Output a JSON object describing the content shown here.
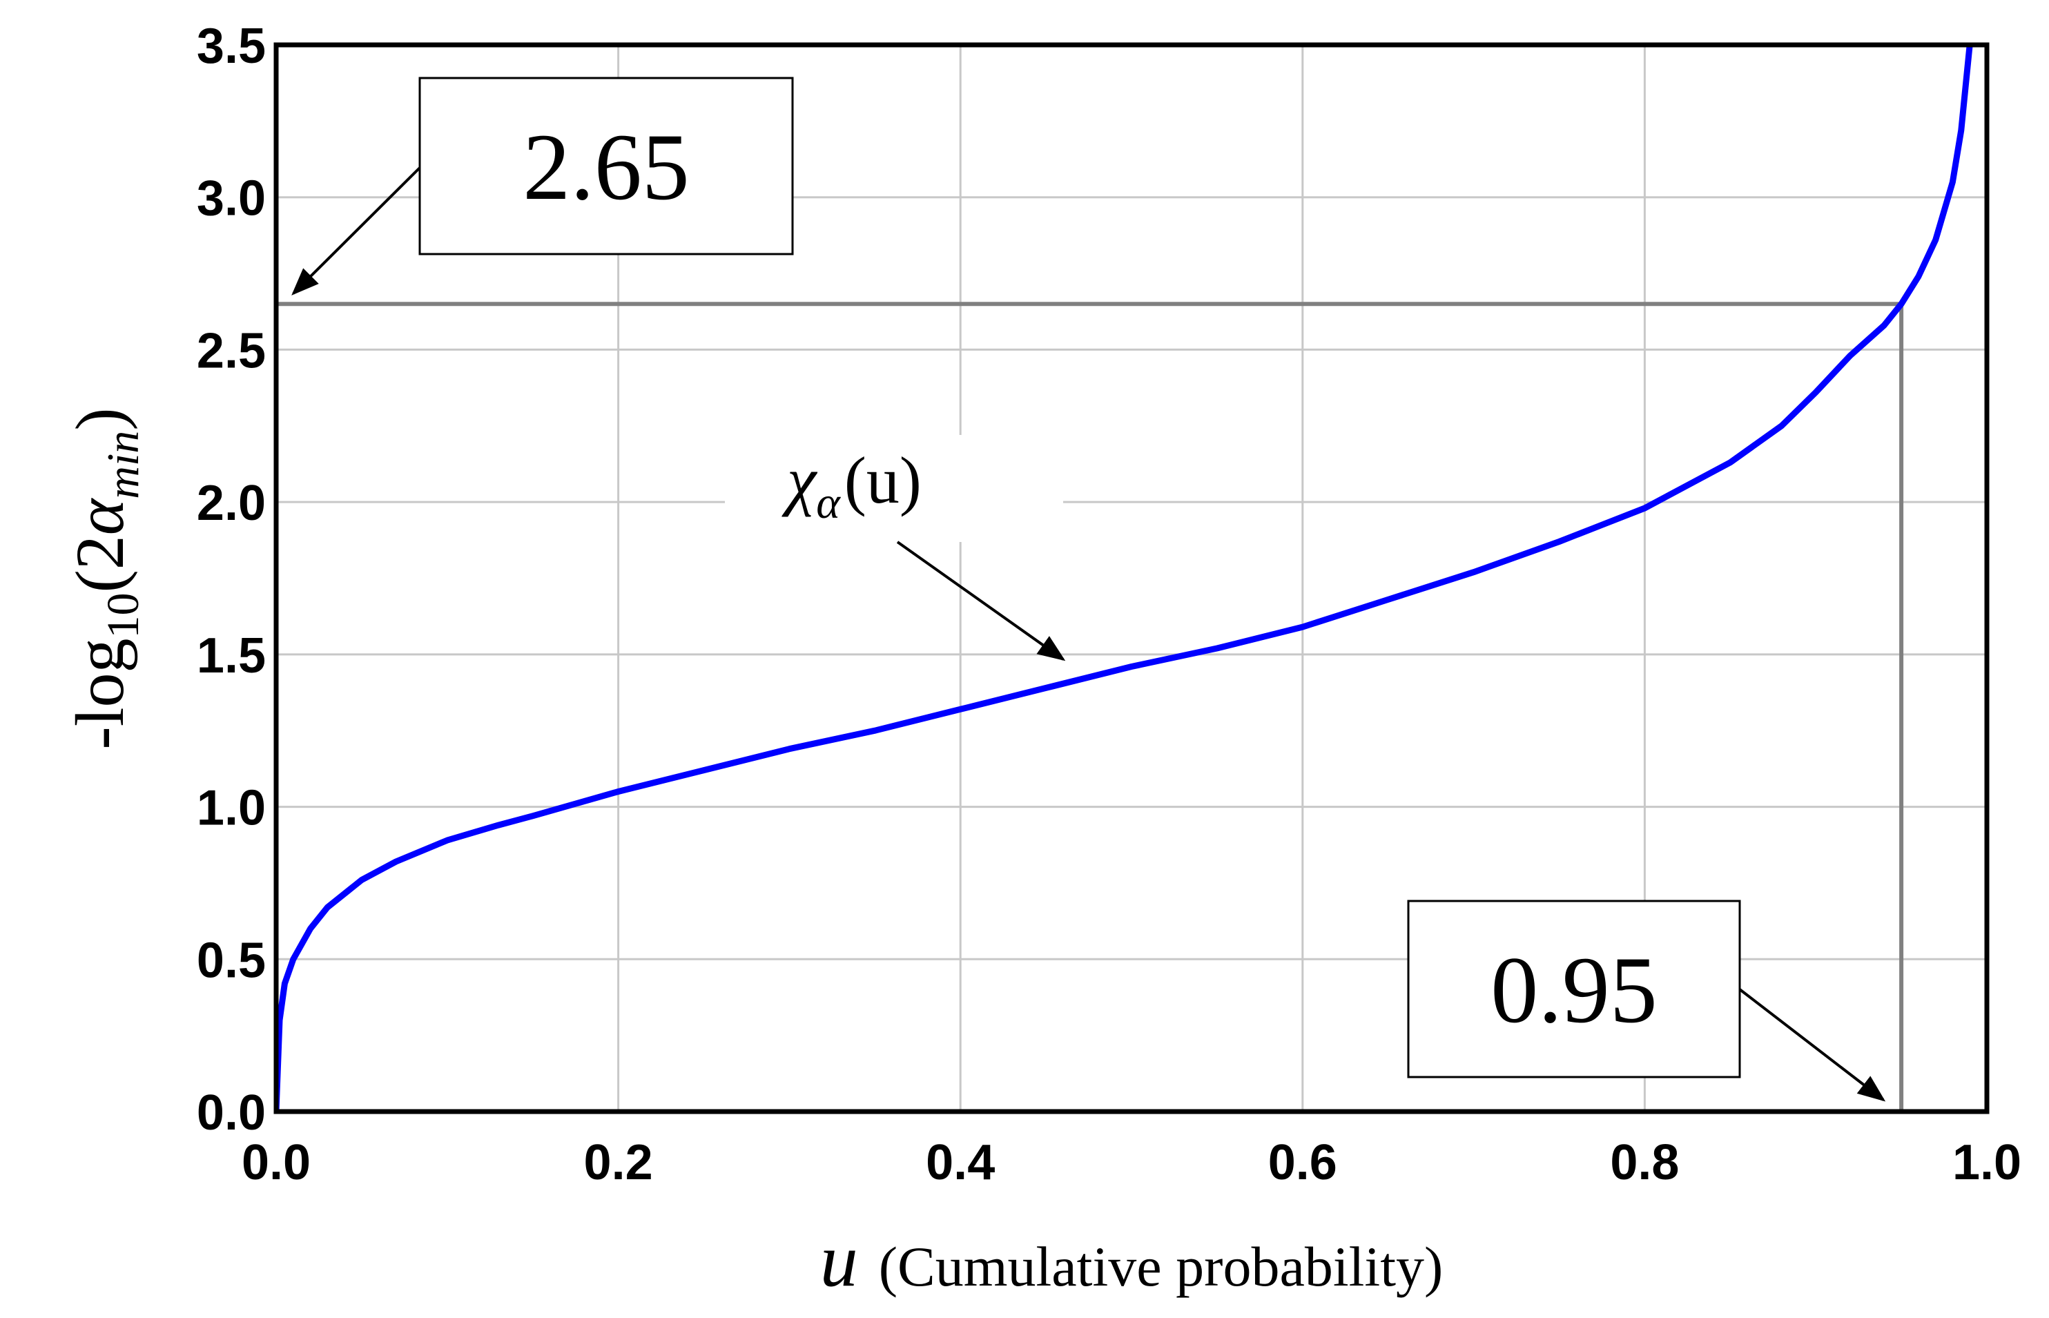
{
  "chart_data": {
    "type": "line",
    "title": "",
    "xlabel_var": "u",
    "xlabel_text": "(Cumulative probability)",
    "ylabel_prefix": "-log",
    "ylabel_sub": "10",
    "ylabel_open": "(2",
    "ylabel_alpha": "α",
    "ylabel_alpha_sub": "min",
    "ylabel_close": ")",
    "xlim": [
      0.0,
      1.0
    ],
    "ylim": [
      0.0,
      3.5
    ],
    "xticks": [
      "0.0",
      "0.2",
      "0.4",
      "0.6",
      "0.8",
      "1.0"
    ],
    "yticks": [
      "0.0",
      "0.5",
      "1.0",
      "1.5",
      "2.0",
      "2.5",
      "3.0",
      "3.5"
    ],
    "xtick_values": [
      0.0,
      0.2,
      0.4,
      0.6,
      0.8,
      1.0
    ],
    "ytick_values": [
      0.0,
      0.5,
      1.0,
      1.5,
      2.0,
      2.5,
      3.0,
      3.5
    ],
    "grid": true,
    "series": [
      {
        "color": "#0000ff",
        "x": [
          0.0,
          0.002,
          0.005,
          0.01,
          0.02,
          0.03,
          0.05,
          0.07,
          0.1,
          0.13,
          0.15,
          0.2,
          0.25,
          0.3,
          0.35,
          0.4,
          0.45,
          0.5,
          0.55,
          0.6,
          0.65,
          0.7,
          0.75,
          0.8,
          0.85,
          0.88,
          0.9,
          0.92,
          0.94,
          0.95,
          0.96,
          0.97,
          0.98,
          0.985,
          0.99
        ],
        "y": [
          0.0,
          0.3,
          0.42,
          0.5,
          0.6,
          0.67,
          0.76,
          0.82,
          0.89,
          0.94,
          0.97,
          1.05,
          1.12,
          1.19,
          1.25,
          1.32,
          1.39,
          1.46,
          1.52,
          1.59,
          1.68,
          1.77,
          1.87,
          1.98,
          2.13,
          2.25,
          2.36,
          2.48,
          2.58,
          2.65,
          2.74,
          2.86,
          3.05,
          3.22,
          3.5
        ]
      }
    ],
    "curve_label_main": "χ",
    "curve_label_sub": "α",
    "curve_label_arg": "(u)",
    "reference": {
      "x": 0.95,
      "y": 2.65,
      "x_label": "0.95",
      "y_label": "2.65"
    },
    "colors": {
      "curve": "#0000ff",
      "reference_lines": "#808080",
      "grid": "#c8c8c8",
      "axes": "#000000"
    }
  }
}
